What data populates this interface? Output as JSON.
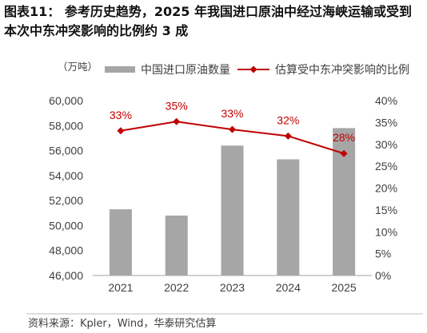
{
  "figure": {
    "title_lines": [
      "图表11： 参考历史趋势，2025 年我国进口原油中经过海峡运输或受到",
      "本次中东冲突影响的比例约 3 成"
    ],
    "source": "资料来源：Kpler，Wind，华泰研究估算"
  },
  "chart_data": {
    "type": "bar",
    "categories": [
      "2021",
      "2022",
      "2023",
      "2024",
      "2025"
    ],
    "series": [
      {
        "name": "中国进口原油数量",
        "type": "bar",
        "axis": "left",
        "color": "#a6a6a6",
        "values": [
          51300,
          50800,
          56400,
          55300,
          57800
        ]
      },
      {
        "name": "估算受中东冲突影响的比例",
        "type": "line",
        "axis": "right",
        "color": "#c00000",
        "marker": "diamond",
        "values": [
          33.1,
          35.2,
          33.4,
          31.9,
          27.9
        ],
        "data_labels": [
          "33%",
          "35%",
          "33%",
          "32%",
          "28%"
        ]
      }
    ],
    "y_left": {
      "label": "（万吨）",
      "ylim": [
        46000,
        60000
      ],
      "ticks": [
        46000,
        48000,
        50000,
        52000,
        54000,
        56000,
        58000,
        60000
      ],
      "tick_labels": [
        "46,000",
        "48,000",
        "50,000",
        "52,000",
        "54,000",
        "56,000",
        "58,000",
        "60,000"
      ]
    },
    "y_right": {
      "ylim": [
        0,
        40
      ],
      "ticks": [
        0,
        5,
        10,
        15,
        20,
        25,
        30,
        35,
        40
      ],
      "tick_labels": [
        "0%",
        "5%",
        "10%",
        "15%",
        "20%",
        "25%",
        "30%",
        "35%",
        "40%"
      ]
    },
    "legend": "top",
    "grid": false
  }
}
